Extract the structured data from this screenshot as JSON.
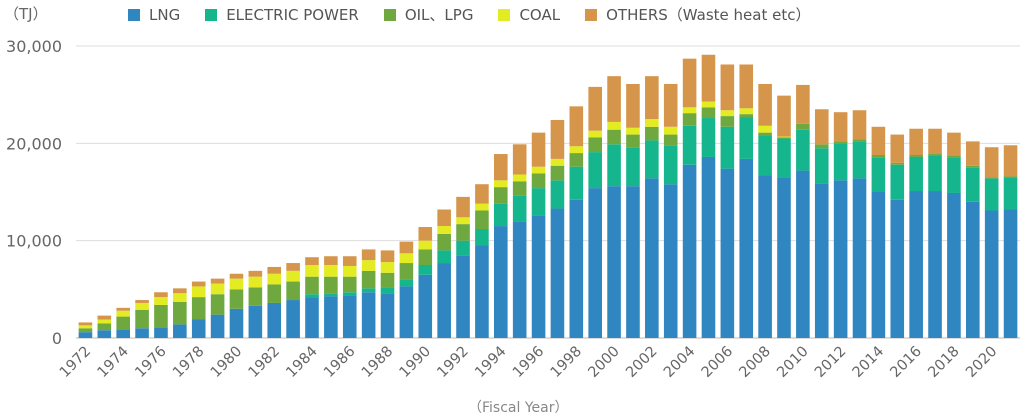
{
  "chart_data": {
    "type": "bar",
    "stacked": true,
    "unit": "（TJ）",
    "xlabel": "（Fiscal Year）",
    "ylim": [
      0,
      30000
    ],
    "yticks": [
      "0",
      "10,000",
      "20,000",
      "30,000"
    ],
    "ytick_values": [
      0,
      10000,
      20000,
      30000
    ],
    "grid": true,
    "legend_position": "top",
    "categories": [
      "1972",
      "1973",
      "1974",
      "1975",
      "1976",
      "1977",
      "1978",
      "1979",
      "1980",
      "1981",
      "1982",
      "1983",
      "1984",
      "1985",
      "1986",
      "1987",
      "1988",
      "1989",
      "1990",
      "1991",
      "1992",
      "1993",
      "1994",
      "1995",
      "1996",
      "1997",
      "1998",
      "1999",
      "2000",
      "2001",
      "2002",
      "2003",
      "2004",
      "2005",
      "2006",
      "2007",
      "2008",
      "2009",
      "2010",
      "2011",
      "2012",
      "2013",
      "2014",
      "2015",
      "2016",
      "2017",
      "2018",
      "2019",
      "2020",
      "2021"
    ],
    "tick_labels": [
      "1972",
      "1974",
      "1976",
      "1978",
      "1980",
      "1982",
      "1984",
      "1986",
      "1988",
      "1990",
      "1992",
      "1994",
      "1996",
      "1998",
      "2000",
      "2002",
      "2004",
      "2006",
      "2008",
      "2010",
      "2012",
      "2014",
      "2016",
      "2018",
      "2020"
    ],
    "series": [
      {
        "name": "LNG",
        "color": "#2f86c0",
        "values": [
          600,
          800,
          900,
          1000,
          1100,
          1400,
          1900,
          2400,
          3000,
          3300,
          3600,
          3900,
          4200,
          4300,
          4400,
          4700,
          4600,
          5300,
          6500,
          7700,
          8500,
          9500,
          11500,
          12000,
          12600,
          13300,
          14200,
          15400,
          15600,
          15600,
          16400,
          15800,
          17800,
          18600,
          17400,
          18400,
          16700,
          16500,
          17200,
          15900,
          16200,
          16400,
          15000,
          14200,
          15100,
          15100,
          14900,
          14000,
          13100,
          13200
        ]
      },
      {
        "name": "ELECTRIC POWER",
        "color": "#15b58d",
        "values": [
          0,
          0,
          0,
          0,
          0,
          0,
          0,
          0,
          0,
          0,
          0,
          0,
          300,
          300,
          300,
          400,
          600,
          700,
          1000,
          1300,
          1500,
          1700,
          2300,
          2600,
          2800,
          2900,
          3400,
          3700,
          4300,
          4000,
          3900,
          4000,
          4000,
          4000,
          4300,
          4300,
          4100,
          4000,
          4200,
          3600,
          3800,
          3800,
          3500,
          3600,
          3500,
          3600,
          3600,
          3500,
          3300,
          3300
        ]
      },
      {
        "name": "OIL、LPG",
        "color": "#6ea83e",
        "values": [
          400,
          700,
          1300,
          1900,
          2300,
          2300,
          2300,
          2100,
          2000,
          1900,
          1900,
          1900,
          1800,
          1700,
          1600,
          1800,
          1500,
          1700,
          1600,
          1700,
          1700,
          1900,
          1700,
          1500,
          1500,
          1500,
          1400,
          1500,
          1500,
          1300,
          1400,
          1100,
          1300,
          1100,
          1100,
          300,
          300,
          100,
          600,
          400,
          200,
          200,
          300,
          200,
          200,
          200,
          200,
          200,
          100,
          100
        ]
      },
      {
        "name": "COAL",
        "color": "#e3ec22",
        "values": [
          300,
          400,
          600,
          700,
          800,
          900,
          1100,
          1100,
          1100,
          1100,
          1100,
          1100,
          1200,
          1200,
          1100,
          1100,
          1100,
          1000,
          900,
          800,
          700,
          700,
          700,
          700,
          700,
          700,
          700,
          700,
          800,
          700,
          800,
          800,
          600,
          600,
          600,
          600,
          700,
          100,
          0,
          0,
          0,
          0,
          0,
          0,
          0,
          0,
          0,
          0,
          0,
          0
        ]
      },
      {
        "name": "OTHERS（Waste heat etc）",
        "color": "#d5954a",
        "values": [
          300,
          400,
          300,
          300,
          500,
          500,
          500,
          500,
          500,
          600,
          700,
          800,
          800,
          900,
          1000,
          1100,
          1200,
          1200,
          1400,
          1700,
          2100,
          2000,
          2700,
          3100,
          3500,
          4000,
          4100,
          4500,
          4700,
          4500,
          4400,
          4400,
          5000,
          4800,
          4700,
          4500,
          4300,
          4200,
          4000,
          3600,
          3000,
          3000,
          2900,
          2900,
          2700,
          2600,
          2400,
          2500,
          3100,
          3200
        ]
      }
    ]
  }
}
